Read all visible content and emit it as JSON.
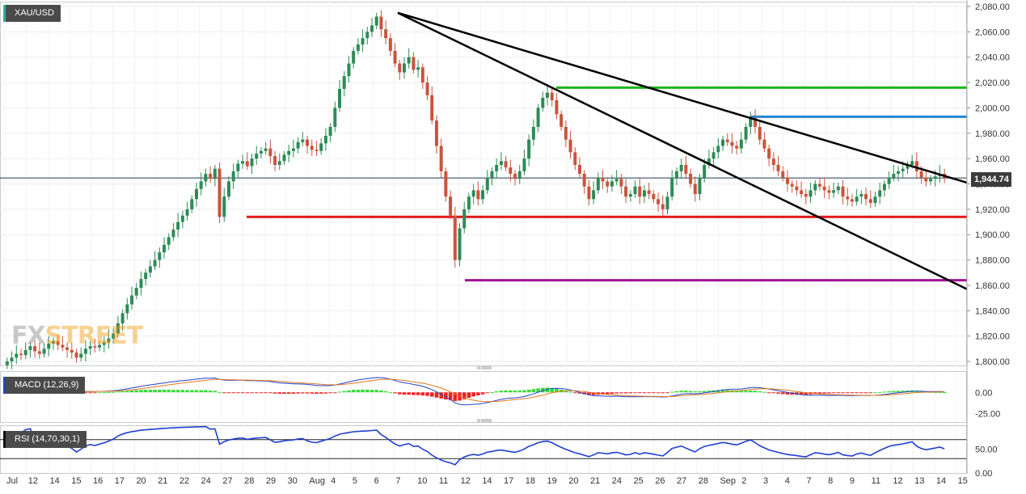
{
  "chart_data": {
    "type": "candlestick",
    "symbol": "XAU/USD",
    "last_price_label": "1,944.74",
    "last_price": 1944.74,
    "ylim": [
      1795,
      2085
    ],
    "y_ticks": [
      "2,080.00",
      "2,060.00",
      "2,040.00",
      "2,020.00",
      "2,000.00",
      "1,980.00",
      "1,960.00",
      "1,940.00",
      "1,920.00",
      "1,900.00",
      "1,880.00",
      "1,860.00",
      "1,840.00",
      "1,820.00",
      "1,800.00"
    ],
    "x_labels": [
      "Jul",
      "12",
      "14",
      "15",
      "16",
      "17",
      "20",
      "21",
      "22",
      "24",
      "27",
      "28",
      "29",
      "30",
      "Aug",
      "4",
      "5",
      "6",
      "7",
      "10",
      "11",
      "12",
      "14",
      "17",
      "18",
      "19",
      "20",
      "21",
      "24",
      "25",
      "26",
      "27",
      "28",
      "Sep",
      "2",
      "3",
      "4",
      "7",
      "8",
      "9",
      "11",
      "12",
      "13",
      "14",
      "15"
    ],
    "closes": [
      1800,
      1803,
      1806,
      1805,
      1809,
      1812,
      1808,
      1806,
      1810,
      1814,
      1816,
      1813,
      1811,
      1809,
      1807,
      1803,
      1806,
      1810,
      1812,
      1811,
      1813,
      1815,
      1818,
      1822,
      1830,
      1838,
      1845,
      1852,
      1858,
      1865,
      1870,
      1875,
      1880,
      1886,
      1892,
      1898,
      1904,
      1910,
      1915,
      1920,
      1928,
      1936,
      1942,
      1948,
      1944,
      1952,
      1914,
      1930,
      1942,
      1950,
      1956,
      1958,
      1954,
      1960,
      1964,
      1966,
      1968,
      1962,
      1955,
      1958,
      1963,
      1966,
      1968,
      1973,
      1975,
      1970,
      1967,
      1966,
      1972,
      1978,
      1985,
      2000,
      2015,
      2025,
      2035,
      2045,
      2050,
      2055,
      2060,
      2065,
      2072,
      2062,
      2055,
      2045,
      2035,
      2028,
      2035,
      2040,
      2030,
      2032,
      2020,
      2010,
      1990,
      1970,
      1950,
      1930,
      1915,
      1880,
      1905,
      1920,
      1930,
      1935,
      1928,
      1935,
      1945,
      1950,
      1955,
      1958,
      1953,
      1948,
      1944,
      1950,
      1960,
      1975,
      1985,
      2000,
      2008,
      2012,
      2006,
      1995,
      1985,
      1975,
      1965,
      1955,
      1948,
      1938,
      1928,
      1935,
      1945,
      1942,
      1938,
      1942,
      1944,
      1938,
      1930,
      1932,
      1938,
      1930,
      1935,
      1932,
      1928,
      1924,
      1920,
      1930,
      1945,
      1950,
      1955,
      1948,
      1940,
      1932,
      1945,
      1955,
      1960,
      1965,
      1970,
      1975,
      1973,
      1970,
      1968,
      1975,
      1985,
      1992,
      1985,
      1975,
      1968,
      1960,
      1955,
      1950,
      1945,
      1940,
      1938,
      1935,
      1932,
      1930,
      1935,
      1940,
      1938,
      1935,
      1933,
      1935,
      1938,
      1930,
      1928,
      1926,
      1930,
      1932,
      1928,
      1925,
      1930,
      1935,
      1940,
      1945,
      1948,
      1950,
      1952,
      1955,
      1958,
      1950,
      1945,
      1942,
      1944,
      1946,
      1948,
      1944.74
    ],
    "levels": [
      {
        "price": 2016,
        "color": "#18b818"
      },
      {
        "price": 1993,
        "color": "#1e88d6"
      },
      {
        "price": 1914,
        "color": "#e01818"
      },
      {
        "price": 1864,
        "color": "#a0109a"
      }
    ],
    "indicators": [
      {
        "label": "MACD (12,26,9)",
        "y_ticks": [
          "0.00",
          "-25.00"
        ],
        "ylim": [
          -35,
          25
        ]
      },
      {
        "label": "RSI (14,70,30,1)",
        "y_ticks": [
          "50.00",
          "0.00"
        ],
        "ylim": [
          0,
          100
        ],
        "bands": [
          70,
          30
        ]
      }
    ]
  },
  "watermark": {
    "fx": "FX",
    "street": "STREET"
  }
}
